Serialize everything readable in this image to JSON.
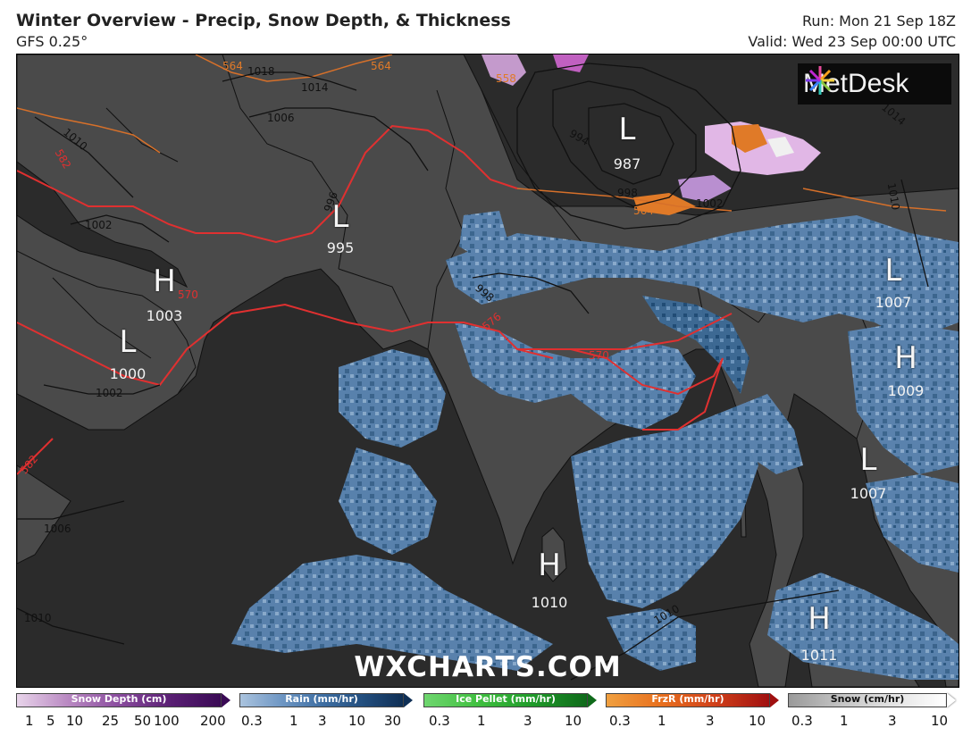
{
  "header": {
    "title": "Winter Overview - Precip, Snow Depth, & Thickness",
    "model": "GFS 0.25°",
    "run": "Run: Mon 21 Sep 18Z",
    "valid": "Valid: Wed 23 Sep 00:00 UTC"
  },
  "logo": {
    "text": "MetDesk",
    "icon": "metdesk-starburst-icon"
  },
  "watermark": "WXCHARTS.COM",
  "pressure_centers": [
    {
      "type": "L",
      "value": "987"
    },
    {
      "type": "L",
      "value": "995"
    },
    {
      "type": "H",
      "value": "1003"
    },
    {
      "type": "L",
      "value": "1000"
    },
    {
      "type": "L",
      "value": "1007"
    },
    {
      "type": "H",
      "value": "1009"
    },
    {
      "type": "L",
      "value": "1007"
    },
    {
      "type": "H",
      "value": "1010"
    },
    {
      "type": "H",
      "value": "1011"
    }
  ],
  "isobar_labels": [
    "1018",
    "1014",
    "1006",
    "1010",
    "1002",
    "994",
    "998",
    "996",
    "1002",
    "1014",
    "1010",
    "998",
    "1002",
    "1006",
    "1010",
    "1010"
  ],
  "thickness_labels": [
    "564",
    "558",
    "564",
    "582",
    "570",
    "582",
    "576",
    "570",
    "564"
  ],
  "colors": {
    "land": "#4a4a4a",
    "ocean": "#2b2b2b",
    "rain": "#5b86b3",
    "rain_dark": "#2c5a86",
    "thickness_red": "#e03030",
    "thickness_orange": "#e07a28",
    "isobar": "#111111"
  },
  "legends": [
    {
      "title": "Snow Depth (cm)",
      "ticks": [
        "1",
        "5",
        "10",
        "25",
        "50",
        "100",
        "200"
      ],
      "colors": [
        "#e8d4ea",
        "#b989c2",
        "#8a4c9e",
        "#5a1f74",
        "#3a0a55"
      ]
    },
    {
      "title": "Rain (mm/hr)",
      "ticks": [
        "0.3",
        "1",
        "3",
        "10",
        "30"
      ],
      "colors": [
        "#aac3de",
        "#6f97c4",
        "#3f6fa3",
        "#234f7f",
        "#0f2f55"
      ]
    },
    {
      "title": "Ice Pellet (mm/hr)",
      "ticks": [
        "0.3",
        "1",
        "3",
        "10"
      ],
      "colors": [
        "#6fd66f",
        "#3fbf3f",
        "#1f9a2a",
        "#0f6a1a"
      ]
    },
    {
      "title": "FrzR (mm/hr)",
      "ticks": [
        "0.3",
        "1",
        "3",
        "10"
      ],
      "colors": [
        "#f0a040",
        "#e8701e",
        "#d0401a",
        "#a01010"
      ]
    },
    {
      "title": "Snow (cm/hr)",
      "ticks": [
        "0.3",
        "1",
        "3",
        "10"
      ],
      "colors": [
        "#9a9a9a",
        "#c4c4c4",
        "#e4e4e4",
        "#ffffff"
      ]
    }
  ]
}
